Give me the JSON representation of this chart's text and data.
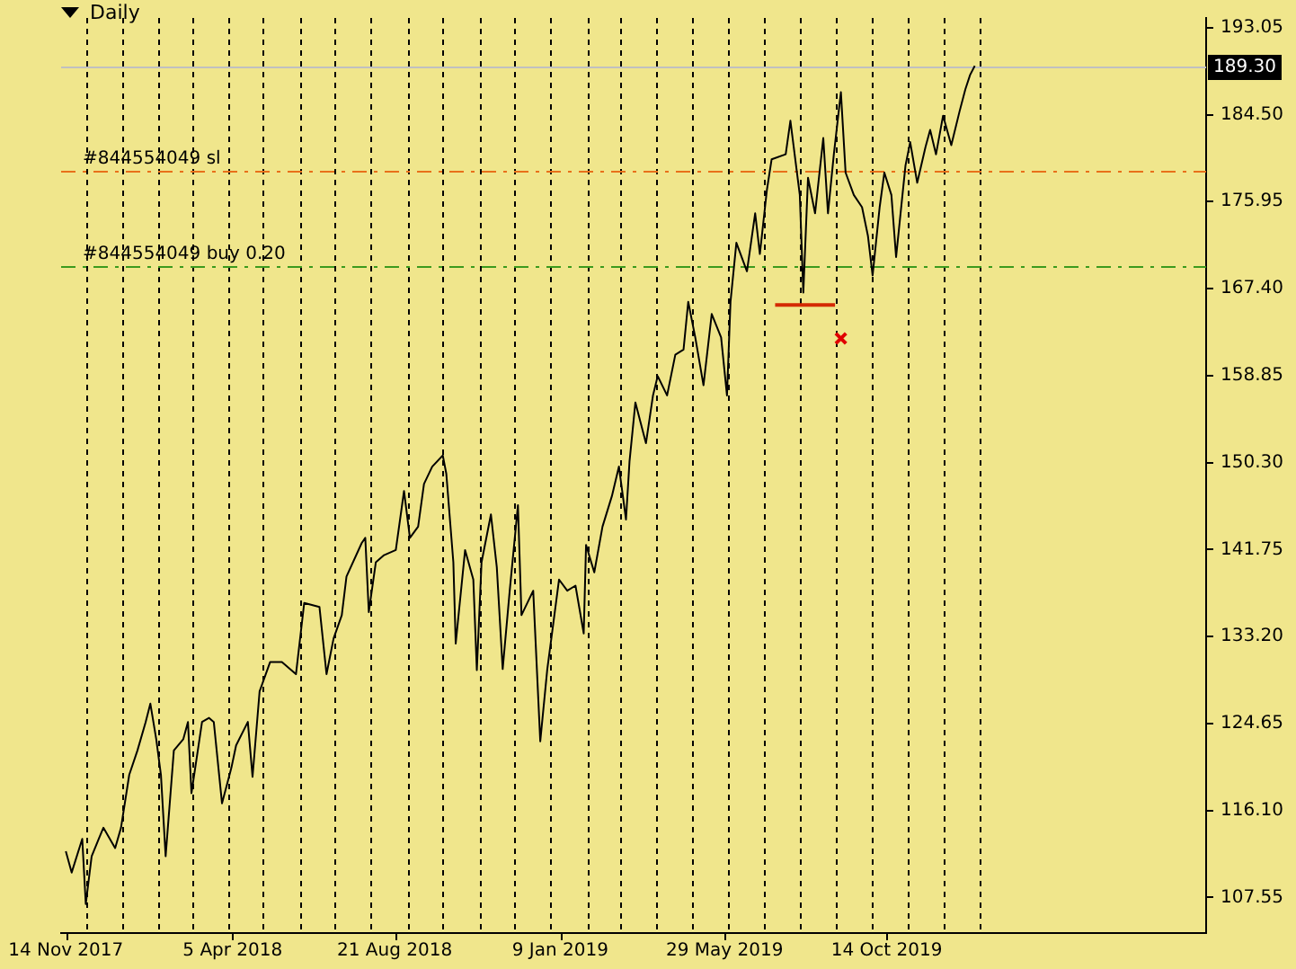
{
  "chart_data": {
    "type": "line",
    "title": "Daily",
    "marker": "none",
    "grid": "x",
    "legend": false,
    "series": [
      {
        "color": "#000000",
        "x": [
          "2017-11-14",
          "2017-11-19",
          "2017-11-28",
          "2017-12-01",
          "2017-12-06",
          "2017-12-12",
          "2017-12-16",
          "2017-12-26",
          "2017-12-31",
          "2018-01-07",
          "2018-01-14",
          "2018-01-21",
          "2018-01-25",
          "2018-01-30",
          "2018-02-03",
          "2018-02-07",
          "2018-02-14",
          "2018-02-22",
          "2018-02-26",
          "2018-03-01",
          "2018-03-10",
          "2018-03-16",
          "2018-03-20",
          "2018-03-27",
          "2018-04-04",
          "2018-04-08",
          "2018-04-18",
          "2018-04-22",
          "2018-04-28",
          "2018-05-07",
          "2018-05-17",
          "2018-05-29",
          "2018-06-05",
          "2018-06-18",
          "2018-06-24",
          "2018-06-30",
          "2018-07-07",
          "2018-07-11",
          "2018-07-24",
          "2018-07-27",
          "2018-07-30",
          "2018-08-05",
          "2018-08-12",
          "2018-08-22",
          "2018-08-29",
          "2018-09-03",
          "2018-09-10",
          "2018-09-15",
          "2018-09-22",
          "2018-10-01",
          "2018-10-04",
          "2018-10-10",
          "2018-10-12",
          "2018-10-20",
          "2018-10-27",
          "2018-10-30",
          "2018-11-03",
          "2018-11-11",
          "2018-11-16",
          "2018-11-21",
          "2018-11-27",
          "2018-12-04",
          "2018-12-07",
          "2018-12-17",
          "2018-12-23",
          "2018-12-29",
          "2019-01-02",
          "2019-01-08",
          "2019-01-15",
          "2019-01-22",
          "2019-01-29",
          "2019-01-31",
          "2019-02-07",
          "2019-02-14",
          "2019-02-22",
          "2019-02-28",
          "2019-03-06",
          "2019-03-09",
          "2019-03-14",
          "2019-03-23",
          "2019-03-29",
          "2019-04-02",
          "2019-04-10",
          "2019-04-17",
          "2019-04-24",
          "2019-04-28",
          "2019-05-04",
          "2019-05-11",
          "2019-05-18",
          "2019-05-26",
          "2019-05-31",
          "2019-06-03",
          "2019-06-08",
          "2019-06-17",
          "2019-06-24",
          "2019-06-28",
          "2019-07-04",
          "2019-07-08",
          "2019-07-20",
          "2019-07-24",
          "2019-08-01",
          "2019-08-04",
          "2019-08-08",
          "2019-08-14",
          "2019-08-21",
          "2019-08-25",
          "2019-08-30",
          "2019-09-05",
          "2019-09-09",
          "2019-09-16",
          "2019-09-23",
          "2019-09-28",
          "2019-10-02",
          "2019-10-08",
          "2019-10-12",
          "2019-10-18",
          "2019-10-22",
          "2019-10-30",
          "2019-11-03",
          "2019-11-09",
          "2019-11-16",
          "2019-11-20",
          "2019-11-25",
          "2019-12-01",
          "2019-12-08",
          "2019-12-15",
          "2019-12-20",
          "2019-12-24",
          "2019-12-28"
        ],
        "values": [
          112.1,
          110.0,
          113.3,
          106.9,
          111.6,
          113.3,
          114.4,
          112.4,
          114.4,
          119.6,
          122.0,
          124.8,
          126.6,
          123.1,
          119.6,
          111.6,
          122.0,
          123.1,
          124.8,
          117.8,
          124.8,
          125.2,
          124.8,
          116.8,
          120.3,
          122.5,
          124.8,
          119.4,
          127.8,
          130.7,
          130.7,
          129.5,
          136.5,
          136.1,
          129.5,
          133.0,
          135.3,
          139.1,
          142.4,
          142.9,
          135.6,
          140.5,
          141.2,
          141.7,
          147.5,
          142.9,
          144.0,
          148.2,
          149.9,
          151.0,
          149.2,
          140.5,
          132.5,
          141.7,
          138.8,
          129.9,
          140.5,
          145.2,
          140.0,
          130.0,
          137.7,
          146.1,
          135.3,
          137.7,
          122.9,
          130.0,
          133.5,
          138.8,
          137.7,
          138.2,
          133.5,
          142.2,
          139.5,
          144.0,
          147.0,
          149.9,
          144.7,
          150.4,
          156.2,
          152.2,
          156.9,
          158.8,
          156.9,
          160.9,
          161.4,
          166.1,
          162.6,
          157.9,
          164.9,
          162.6,
          156.9,
          166.1,
          171.9,
          169.1,
          174.8,
          170.8,
          177.1,
          180.1,
          180.6,
          183.9,
          176.6,
          167.0,
          178.3,
          174.8,
          182.2,
          174.8,
          180.6,
          186.7,
          178.8,
          176.6,
          175.4,
          172.6,
          168.7,
          175.4,
          178.8,
          176.6,
          170.5,
          179.5,
          181.8,
          177.8,
          181.3,
          183.0,
          180.6,
          184.4,
          181.5,
          184.8,
          187.0,
          188.4,
          189.3
        ]
      },
      {
        "type": "line",
        "color": "#d42a00",
        "x": [
          "2019-07-11",
          "2019-08-31"
        ],
        "values": [
          165.8,
          165.8
        ]
      },
      {
        "type": "scatter",
        "marker": "cross",
        "color": "#e00000",
        "x": [
          "2019-09-05"
        ],
        "values": [
          162.5
        ]
      }
    ],
    "xlim": [
      "2017-11-10",
      "2020-07-12"
    ],
    "xticks": [
      {
        "value": "2017-11-14",
        "label": "14 Nov 2017"
      },
      {
        "value": "2017-12-01",
        "label": null
      },
      {
        "value": "2018-01-01",
        "label": null
      },
      {
        "value": "2018-02-01",
        "label": null
      },
      {
        "value": "2018-03-01",
        "label": null
      },
      {
        "value": "2018-04-01",
        "label": null
      },
      {
        "value": "2018-04-05",
        "label": "5 Apr 2018"
      },
      {
        "value": "2018-05-01",
        "label": null
      },
      {
        "value": "2018-06-01",
        "label": null
      },
      {
        "value": "2018-07-01",
        "label": null
      },
      {
        "value": "2018-08-01",
        "label": null
      },
      {
        "value": "2018-08-21",
        "label": "21 Aug 2018"
      },
      {
        "value": "2018-09-01",
        "label": null
      },
      {
        "value": "2018-10-01",
        "label": null
      },
      {
        "value": "2018-11-01",
        "label": null
      },
      {
        "value": "2018-12-01",
        "label": null
      },
      {
        "value": "2019-01-01",
        "label": null
      },
      {
        "value": "2019-01-09",
        "label": "9 Jan 2019"
      },
      {
        "value": "2019-02-01",
        "label": null
      },
      {
        "value": "2019-03-01",
        "label": null
      },
      {
        "value": "2019-04-01",
        "label": null
      },
      {
        "value": "2019-05-01",
        "label": null
      },
      {
        "value": "2019-05-29",
        "label": "29 May 2019"
      },
      {
        "value": "2019-06-01",
        "label": null
      },
      {
        "value": "2019-07-01",
        "label": null
      },
      {
        "value": "2019-08-01",
        "label": null
      },
      {
        "value": "2019-09-01",
        "label": null
      },
      {
        "value": "2019-10-01",
        "label": null
      },
      {
        "value": "2019-10-14",
        "label": "14 Oct 2019"
      },
      {
        "value": "2019-11-01",
        "label": null
      },
      {
        "value": "2019-12-01",
        "label": null
      },
      {
        "value": "2020-01-01",
        "label": null
      }
    ],
    "ylim": [
      104.05,
      194.0
    ],
    "yticks": [
      {
        "value": 107.55,
        "label": "107.55"
      },
      {
        "value": 116.1,
        "label": "116.10"
      },
      {
        "value": 124.65,
        "label": "124.65"
      },
      {
        "value": 133.2,
        "label": "133.20"
      },
      {
        "value": 141.75,
        "label": "141.75"
      },
      {
        "value": 150.3,
        "label": "150.30"
      },
      {
        "value": 158.85,
        "label": "158.85"
      },
      {
        "value": 167.4,
        "label": "167.40"
      },
      {
        "value": 175.95,
        "label": "175.95"
      },
      {
        "value": 184.5,
        "label": "184.50"
      },
      {
        "value": 193.05,
        "label": "193.05"
      }
    ],
    "ref_lines": [
      {
        "axis": "y",
        "value": 179.0,
        "label": "#844554049 sl",
        "color": "#e8701a",
        "line_style": "dashed"
      },
      {
        "axis": "y",
        "value": 169.7,
        "label": "#844554049 buy 0.20",
        "color": "#3c9a1e",
        "line_style": "dashed"
      },
      {
        "axis": "y",
        "value": 189.3,
        "label": "189.30",
        "color": "#c0c0c0",
        "line_style": "solid"
      }
    ]
  }
}
